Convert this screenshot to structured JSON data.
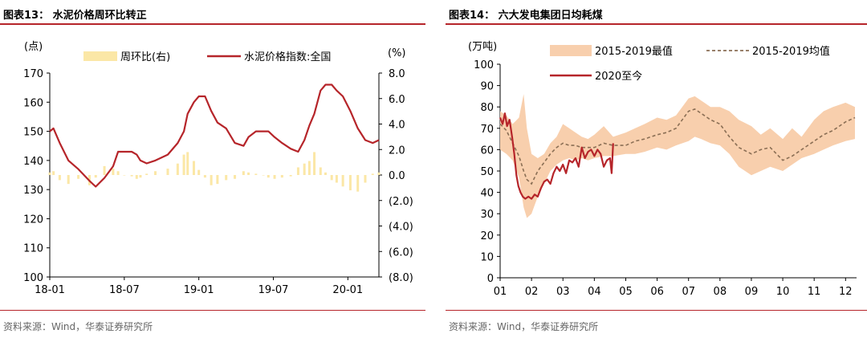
{
  "left": {
    "figure_title": "图表13：  水泥价格周环比转正",
    "source": "资料来源：Wind，华泰证券研究所"
  },
  "right": {
    "figure_title": "图表14：  六大发电集团日均耗煤",
    "source": "资料来源：Wind，华泰证券研究所"
  },
  "colors": {
    "accent": "#b6252a",
    "band": "#f8cfad",
    "band_left_legend": "#fbe7a6",
    "mean": "#8b6f55"
  },
  "chart_data": [
    {
      "type": "line",
      "title": "",
      "ylabel": "(点)",
      "y2label": "(%)",
      "x_ticks": [
        "18-01",
        "18-07",
        "19-01",
        "19-07",
        "20-01"
      ],
      "ylim": [
        100,
        170
      ],
      "y_ticks": [
        "100",
        "110",
        "120",
        "130",
        "140",
        "150",
        "160",
        "170"
      ],
      "y2lim": [
        -8,
        8
      ],
      "y2_ticks": [
        "8.0",
        "6.0",
        "4.0",
        "2.0",
        "0.0",
        "(2.0)",
        "(4.0)",
        "(6.0)",
        "(8.0)"
      ],
      "legend": [
        "周环比(右)",
        "水泥价格指数:全国"
      ],
      "series": [
        {
          "name": "水泥价格指数:全国",
          "axis": "left",
          "x": [
            0,
            0.3,
            0.8,
            1.5,
            2.3,
            3.2,
            3.7,
            4.4,
            5.1,
            5.5,
            6.0,
            6.6,
            7.0,
            7.3,
            7.8,
            8.5,
            9.5,
            10.3,
            10.8,
            11.1,
            11.6,
            12.0,
            12.5,
            13.0,
            13.5,
            14.2,
            14.9,
            15.6,
            16.0,
            16.6,
            17.2,
            17.6,
            18.1,
            18.7,
            19.4,
            20.0,
            20.5,
            20.9,
            21.3,
            21.8,
            22.2,
            22.7,
            23.1,
            23.6,
            24.2,
            24.8,
            25.4,
            26.0,
            26.5
          ],
          "values": [
            150,
            151,
            146,
            140,
            137,
            133,
            131,
            134,
            138,
            143,
            143,
            143,
            142,
            140,
            139,
            140,
            142,
            146,
            150,
            156,
            160,
            162,
            162,
            157,
            153,
            151,
            146,
            145,
            148,
            150,
            150,
            150,
            148,
            146,
            144,
            143,
            147,
            152,
            156,
            164,
            166,
            166,
            164,
            162,
            157,
            151,
            147,
            146,
            147
          ]
        },
        {
          "name": "周环比(右)",
          "axis": "right",
          "x": [
            0,
            0.3,
            0.8,
            1.5,
            2.3,
            3.2,
            3.7,
            4.4,
            5.1,
            5.5,
            6.0,
            6.6,
            7.0,
            7.3,
            7.8,
            8.5,
            9.5,
            10.3,
            10.8,
            11.1,
            11.6,
            12.0,
            12.5,
            13.0,
            13.5,
            14.2,
            14.9,
            15.6,
            16.0,
            16.6,
            17.2,
            17.6,
            18.1,
            18.7,
            19.4,
            20.0,
            20.5,
            20.9,
            21.3,
            21.8,
            22.2,
            22.7,
            23.1,
            23.6,
            24.2,
            24.8,
            25.4,
            26.0,
            26.5
          ],
          "values": [
            0.2,
            0.3,
            -0.4,
            -0.7,
            -0.3,
            -0.8,
            -0.2,
            0.7,
            0.5,
            0.3,
            0,
            -0.1,
            -0.3,
            -0.2,
            0.1,
            0.3,
            0.5,
            0.9,
            1.6,
            1.8,
            1.1,
            0.4,
            -0.2,
            -0.8,
            -0.7,
            -0.4,
            -0.3,
            0.3,
            0.2,
            0.1,
            0,
            -0.2,
            -0.3,
            -0.2,
            -0.1,
            0.6,
            0.9,
            1.1,
            1.8,
            0.6,
            0.2,
            -0.4,
            -0.6,
            -0.9,
            -1.2,
            -1.3,
            -0.6,
            0.1,
            0.2
          ]
        }
      ]
    },
    {
      "type": "area",
      "title": "",
      "ylabel": "(万吨)",
      "x_ticks": [
        "01",
        "02",
        "03",
        "04",
        "05",
        "06",
        "07",
        "08",
        "09",
        "10",
        "11",
        "12"
      ],
      "ylim": [
        0,
        100
      ],
      "y_ticks": [
        "0",
        "10",
        "20",
        "30",
        "40",
        "50",
        "60",
        "70",
        "80",
        "90",
        "100"
      ],
      "legend": [
        "2015-2019最值",
        "2015-2019均值",
        "2020至今"
      ],
      "x": [
        1,
        1.2,
        1.4,
        1.6,
        1.75,
        1.85,
        2.0,
        2.2,
        2.4,
        2.6,
        2.8,
        3.0,
        3.2,
        3.4,
        3.6,
        3.8,
        4.0,
        4.3,
        4.6,
        5.0,
        5.3,
        5.6,
        6.0,
        6.3,
        6.6,
        7.0,
        7.2,
        7.4,
        7.7,
        8.0,
        8.3,
        8.6,
        9.0,
        9.3,
        9.6,
        10.0,
        10.3,
        10.6,
        11.0,
        11.3,
        11.6,
        12.0,
        12.3
      ],
      "series": [
        {
          "name": "2015-2019最值",
          "upper": [
            78,
            76,
            72,
            75,
            86,
            70,
            58,
            56,
            58,
            63,
            66,
            72,
            70,
            68,
            66,
            65,
            67,
            71,
            66,
            68,
            70,
            72,
            75,
            74,
            76,
            84,
            85,
            83,
            80,
            80,
            78,
            74,
            71,
            67,
            70,
            65,
            70,
            66,
            74,
            78,
            80,
            82,
            80
          ],
          "lower": [
            60,
            58,
            55,
            47,
            33,
            28,
            30,
            38,
            44,
            50,
            53,
            55,
            56,
            55,
            56,
            55,
            56,
            57,
            57,
            58,
            58,
            59,
            61,
            60,
            62,
            64,
            66,
            65,
            63,
            62,
            58,
            52,
            48,
            50,
            52,
            50,
            53,
            56,
            58,
            60,
            62,
            64,
            65
          ]
        },
        {
          "name": "2015-2019均值",
          "values": [
            72,
            69,
            63,
            57,
            50,
            46,
            44,
            50,
            54,
            58,
            61,
            63,
            62,
            62,
            61,
            61,
            61,
            63,
            62,
            62,
            64,
            65,
            67,
            68,
            70,
            78,
            79,
            77,
            74,
            72,
            66,
            61,
            58,
            60,
            61,
            55,
            57,
            60,
            64,
            67,
            69,
            73,
            75
          ]
        },
        {
          "name": "2020至今",
          "x": [
            1.0,
            1.08,
            1.15,
            1.22,
            1.3,
            1.38,
            1.45,
            1.52,
            1.58,
            1.65,
            1.72,
            1.8,
            1.9,
            2.0,
            2.1,
            2.2,
            2.3,
            2.4,
            2.5,
            2.6,
            2.7,
            2.8,
            2.9,
            3.0,
            3.1,
            3.2,
            3.3,
            3.4,
            3.5,
            3.6,
            3.7,
            3.8,
            3.9,
            4.0,
            4.1,
            4.2,
            4.3,
            4.4,
            4.5,
            4.55,
            4.6
          ],
          "values": [
            75,
            72,
            77,
            71,
            74,
            66,
            58,
            48,
            43,
            40,
            38,
            37,
            38,
            37,
            39,
            38,
            42,
            45,
            46,
            44,
            49,
            52,
            50,
            53,
            49,
            55,
            54,
            56,
            52,
            61,
            56,
            59,
            60,
            57,
            60,
            58,
            52,
            55,
            56,
            49,
            63
          ]
        }
      ]
    }
  ]
}
